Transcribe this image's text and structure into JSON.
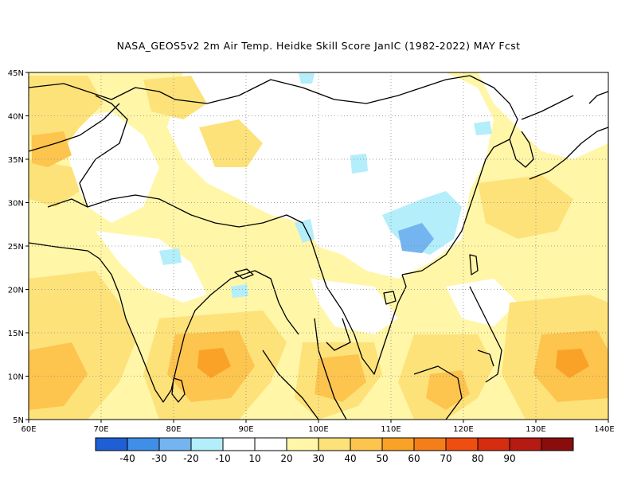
{
  "title": "NASA_GEOS5v2  2m Air Temp. Heidke Skill Score JanIC (1982-2022) MAY Fcst",
  "lat_labels": [
    "45N",
    "40N",
    "35N",
    "30N",
    "25N",
    "20N",
    "15N",
    "10N",
    "5N"
  ],
  "lon_labels": [
    "60E",
    "70E",
    "80E",
    "90E",
    "100E",
    "110E",
    "120E",
    "130E",
    "140E"
  ],
  "colorbar": {
    "colors": [
      "#1f5fd6",
      "#3f8ee8",
      "#74b4f0",
      "#b3eefa",
      "#ffffff",
      "#ffffff",
      "#fff6a8",
      "#fde27a",
      "#fdc44e",
      "#f9a227",
      "#f47e19",
      "#ee4f10",
      "#d42d10",
      "#b51b12",
      "#8a0d0d"
    ],
    "labels": [
      "-40",
      "-30",
      "-20",
      "-10",
      "10",
      "20",
      "30",
      "40",
      "50",
      "60",
      "70",
      "80",
      "90"
    ]
  }
}
